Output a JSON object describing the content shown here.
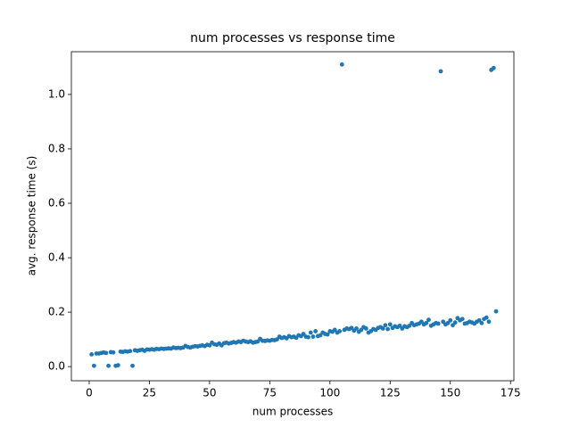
{
  "chart_data": {
    "type": "scatter",
    "title": "num processes vs response time",
    "xlabel": "num processes",
    "ylabel": "avg. response time (s)",
    "color": "#1f77b4",
    "xlim": [
      -7.4,
      176.4
    ],
    "ylim": [
      -0.052,
      1.157
    ],
    "xticks": [
      0,
      25,
      50,
      75,
      100,
      125,
      150,
      175
    ],
    "yticks": [
      {
        "value": 0,
        "label": "0.0"
      },
      {
        "value": 0.2,
        "label": "0.2"
      },
      {
        "value": 0.4,
        "label": "0.4"
      },
      {
        "value": 0.6,
        "label": "0.6"
      },
      {
        "value": 0.8,
        "label": "0.8"
      },
      {
        "value": 1.0,
        "label": "1.0"
      }
    ],
    "x": [
      1,
      2,
      3,
      4,
      5,
      6,
      7,
      8,
      9,
      10,
      11,
      12,
      13,
      14,
      15,
      16,
      17,
      18,
      19,
      20,
      21,
      22,
      23,
      24,
      25,
      26,
      27,
      28,
      29,
      30,
      31,
      32,
      33,
      34,
      35,
      36,
      37,
      38,
      39,
      40,
      41,
      42,
      43,
      44,
      45,
      46,
      47,
      48,
      49,
      50,
      51,
      52,
      53,
      54,
      55,
      56,
      57,
      58,
      59,
      60,
      61,
      62,
      63,
      64,
      65,
      66,
      67,
      68,
      69,
      70,
      71,
      72,
      73,
      74,
      75,
      76,
      77,
      78,
      79,
      80,
      81,
      82,
      83,
      84,
      85,
      86,
      87,
      88,
      89,
      90,
      91,
      92,
      93,
      94,
      95,
      96,
      97,
      98,
      99,
      100,
      101,
      102,
      103,
      104,
      105,
      106,
      107,
      108,
      109,
      110,
      111,
      112,
      113,
      114,
      115,
      116,
      117,
      118,
      119,
      120,
      121,
      122,
      123,
      124,
      125,
      126,
      127,
      128,
      129,
      130,
      131,
      132,
      133,
      134,
      135,
      136,
      137,
      138,
      139,
      140,
      141,
      142,
      143,
      144,
      145,
      146,
      147,
      148,
      149,
      150,
      151,
      152,
      153,
      154,
      155,
      156,
      157,
      158,
      159,
      160,
      161,
      162,
      163,
      164,
      165,
      166,
      167,
      168,
      169
    ],
    "values": [
      0.045,
      0.003,
      0.048,
      0.048,
      0.05,
      0.052,
      0.05,
      0.003,
      0.053,
      0.052,
      0.003,
      0.005,
      0.055,
      0.054,
      0.056,
      0.055,
      0.057,
      0.003,
      0.06,
      0.058,
      0.06,
      0.062,
      0.058,
      0.063,
      0.062,
      0.064,
      0.062,
      0.065,
      0.064,
      0.066,
      0.065,
      0.066,
      0.067,
      0.066,
      0.07,
      0.068,
      0.069,
      0.068,
      0.07,
      0.076,
      0.072,
      0.07,
      0.073,
      0.075,
      0.074,
      0.076,
      0.078,
      0.075,
      0.08,
      0.078,
      0.088,
      0.082,
      0.08,
      0.085,
      0.078,
      0.086,
      0.088,
      0.085,
      0.087,
      0.09,
      0.088,
      0.092,
      0.09,
      0.095,
      0.092,
      0.09,
      0.093,
      0.088,
      0.09,
      0.092,
      0.102,
      0.095,
      0.094,
      0.096,
      0.095,
      0.098,
      0.097,
      0.1,
      0.11,
      0.105,
      0.108,
      0.104,
      0.112,
      0.108,
      0.11,
      0.106,
      0.115,
      0.112,
      0.12,
      0.11,
      0.108,
      0.125,
      0.11,
      0.13,
      0.112,
      0.115,
      0.125,
      0.12,
      0.118,
      0.13,
      0.128,
      0.135,
      0.125,
      0.13,
      1.11,
      0.135,
      0.14,
      0.138,
      0.142,
      0.132,
      0.14,
      0.128,
      0.135,
      0.145,
      0.14,
      0.125,
      0.13,
      0.138,
      0.135,
      0.142,
      0.145,
      0.14,
      0.152,
      0.138,
      0.155,
      0.142,
      0.148,
      0.145,
      0.15,
      0.14,
      0.148,
      0.145,
      0.15,
      0.16,
      0.152,
      0.155,
      0.158,
      0.165,
      0.155,
      0.16,
      0.172,
      0.15,
      0.155,
      0.16,
      0.158,
      1.085,
      0.165,
      0.155,
      0.16,
      0.17,
      0.152,
      0.162,
      0.178,
      0.17,
      0.175,
      0.158,
      0.16,
      0.165,
      0.162,
      0.158,
      0.165,
      0.17,
      0.16,
      0.175,
      0.18,
      0.165,
      1.09,
      1.097,
      0.203
    ]
  }
}
